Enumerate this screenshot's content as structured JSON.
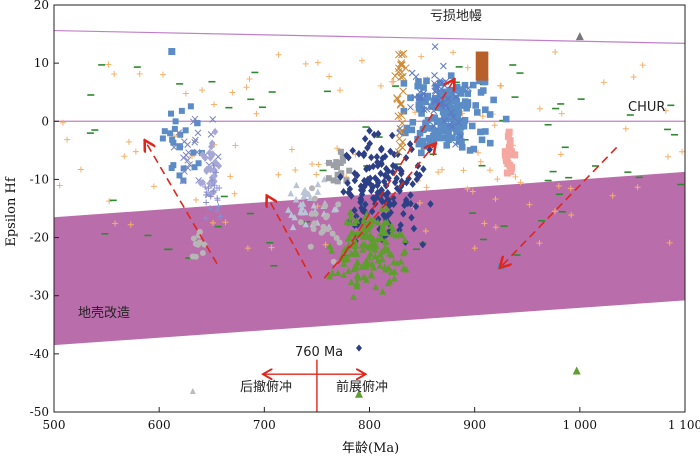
{
  "chart_data": {
    "type": "scatter",
    "title": "",
    "xlabel": "年龄(Ma)",
    "ylabel": "Epsilon Hf",
    "xlim": [
      500,
      1100
    ],
    "ylim": [
      -50,
      20
    ],
    "xticks": [
      500,
      600,
      700,
      800,
      900,
      1000,
      1100
    ],
    "xtick_labels": [
      "500",
      "600",
      "700",
      "800",
      "900",
      "1 000",
      "1 100"
    ],
    "yticks": [
      -50,
      -40,
      -30,
      -20,
      -10,
      0,
      10,
      20
    ],
    "grid": false,
    "reference_lines": [
      {
        "name": "亏损地幔",
        "x": [
          500,
          1100
        ],
        "y": [
          15.6,
          13.4
        ],
        "color": "#c080c8"
      },
      {
        "name": "CHUR",
        "x": [
          500,
          1100
        ],
        "y": [
          0,
          0
        ],
        "color": "#c080c8"
      }
    ],
    "crustal_band": {
      "label": "地壳改造",
      "upper": {
        "x": [
          500,
          1100
        ],
        "y": [
          -16.5,
          -8.7
        ]
      },
      "lower": {
        "x": [
          500,
          1100
        ],
        "y": [
          -38.5,
          -30.8
        ]
      },
      "color": "#b566a6"
    },
    "arrows": [
      {
        "from": [
          655,
          -24.5
        ],
        "to": [
          587,
          -3.5
        ]
      },
      {
        "from": [
          745,
          -27
        ],
        "to": [
          703,
          -13
        ]
      },
      {
        "from": [
          757,
          -27
        ],
        "to": [
          862,
          -4
        ]
      },
      {
        "from": [
          770,
          -24.5
        ],
        "to": [
          880,
          7
        ]
      },
      {
        "from": [
          1035,
          -4.5
        ],
        "to": [
          925,
          -25
        ]
      }
    ],
    "annotations": {
      "depleted_mantle": "亏损地幔",
      "chur": "CHUR",
      "crust": "地壳改造",
      "age_marker": "760 Ma",
      "rollback": "后撤俯冲",
      "advance": "前展俯冲"
    },
    "age_marker": {
      "x": 750,
      "y_top": -41,
      "y_bottom": -50,
      "arrow_left_to": 700,
      "arrow_right_to": 795,
      "arrow_y": -43.5
    },
    "colors": {
      "blue_square": "#5b8cc6",
      "navy_diamond": "#2d3f85",
      "green_triangle": "#5e9e2e",
      "orange_plus": "#f5b06a",
      "grey_circle": "#b6b6b6",
      "lavender_diamond": "#a7a8d6",
      "pink_square": "#f4a8a0",
      "orange_x": "#d18a34",
      "brown_bar": "#b8602a",
      "green_dash": "#2e8a2e",
      "arrow_red": "#e0261b"
    }
  }
}
